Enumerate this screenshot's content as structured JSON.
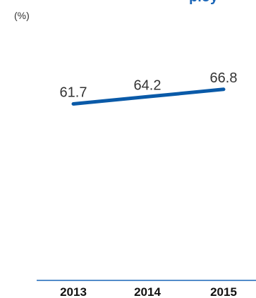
{
  "chart_data": {
    "type": "line",
    "title_fragment": "ploy",
    "unit_label": "(%)",
    "categories": [
      "2013",
      "2014",
      "2015"
    ],
    "series": [
      {
        "values": [
          61.7,
          64.2,
          66.8
        ]
      }
    ],
    "data_labels": [
      "61.7",
      "64.2",
      "66.8"
    ],
    "ylim": [
      0,
      100
    ],
    "grid": false,
    "colors": {
      "line": "#0a5aa8",
      "title": "#1a66b8",
      "axis": "#1a66b8",
      "text": "#333333"
    }
  }
}
